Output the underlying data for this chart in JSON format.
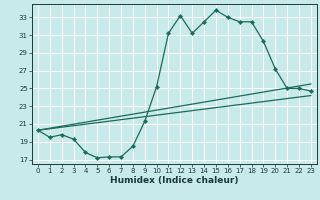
{
  "xlabel": "Humidex (Indice chaleur)",
  "background_color": "#c8eaea",
  "grid_color": "#ffffff",
  "line_color": "#1a6b5a",
  "xlim": [
    -0.5,
    23.5
  ],
  "ylim": [
    16.5,
    34.5
  ],
  "yticks": [
    17,
    19,
    21,
    23,
    25,
    27,
    29,
    31,
    33
  ],
  "xticks": [
    0,
    1,
    2,
    3,
    4,
    5,
    6,
    7,
    8,
    9,
    10,
    11,
    12,
    13,
    14,
    15,
    16,
    17,
    18,
    19,
    20,
    21,
    22,
    23
  ],
  "line1_x": [
    0,
    1,
    2,
    3,
    4,
    5,
    6,
    7,
    8,
    9,
    10,
    11,
    12,
    13,
    14,
    15,
    16,
    17,
    18,
    19,
    20,
    21,
    22,
    23
  ],
  "line1_y": [
    20.3,
    19.5,
    19.8,
    19.3,
    17.8,
    17.2,
    17.3,
    17.3,
    18.5,
    21.3,
    25.2,
    31.2,
    33.2,
    31.2,
    32.5,
    33.8,
    33.0,
    32.5,
    32.5,
    30.3,
    27.2,
    25.0,
    25.0,
    24.7
  ],
  "line2_x": [
    0,
    23
  ],
  "line2_y": [
    20.3,
    25.5
  ],
  "line3_x": [
    0,
    23
  ],
  "line3_y": [
    20.3,
    24.2
  ],
  "marker_size": 2.2,
  "line_width": 0.9,
  "tick_fontsize": 5.0,
  "xlabel_fontsize": 6.5
}
